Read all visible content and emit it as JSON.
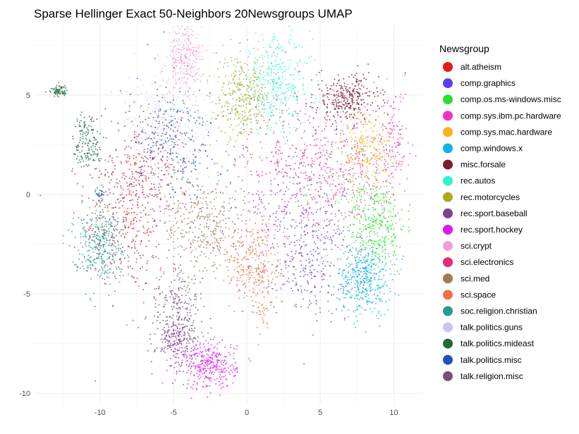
{
  "chart_data": {
    "type": "scatter",
    "title": "Sparse Hellinger Exact 50-Neighbors 20Newsgroups UMAP",
    "xlabel": "",
    "ylabel": "",
    "xlim": [
      -14.5,
      12
    ],
    "ylim": [
      -10.6,
      8.5
    ],
    "x_ticks": [
      -10,
      -5,
      0,
      5,
      10
    ],
    "y_ticks": [
      -10,
      -5,
      0,
      5
    ],
    "grid": true,
    "legend": {
      "title": "Newsgroup",
      "position": "right"
    },
    "series": [
      {
        "name": "alt.atheism",
        "color": "#e41a1c",
        "clusters": [
          {
            "cx": -8.0,
            "cy": -1.0,
            "sx": 1.5,
            "sy": 2.0,
            "n": 320
          },
          {
            "cx": -6.5,
            "cy": 1.5,
            "sx": 1.5,
            "sy": 1.2,
            "n": 120
          }
        ]
      },
      {
        "name": "comp.graphics",
        "color": "#5c3ef0",
        "clusters": [
          {
            "cx": 4.5,
            "cy": -3.5,
            "sx": 1.2,
            "sy": 1.3,
            "n": 220
          },
          {
            "cx": 3.0,
            "cy": -1.0,
            "sx": 2.0,
            "sy": 1.8,
            "n": 140
          }
        ]
      },
      {
        "name": "comp.os.ms-windows.misc",
        "color": "#2be12b",
        "clusters": [
          {
            "cx": 8.8,
            "cy": -1.6,
            "sx": 1.0,
            "sy": 1.2,
            "n": 340
          },
          {
            "cx": 7.0,
            "cy": 0.5,
            "sx": 1.8,
            "sy": 1.8,
            "n": 90
          }
        ]
      },
      {
        "name": "comp.sys.ibm.pc.hardware",
        "color": "#f030c8",
        "clusters": [
          {
            "cx": 6.5,
            "cy": 1.5,
            "sx": 2.0,
            "sy": 1.6,
            "n": 320
          },
          {
            "cx": 10.0,
            "cy": 2.5,
            "sx": 0.5,
            "sy": 1.4,
            "n": 110
          }
        ]
      },
      {
        "name": "comp.sys.mac.hardware",
        "color": "#fcb01a",
        "clusters": [
          {
            "cx": 8.2,
            "cy": 2.3,
            "sx": 0.9,
            "sy": 1.0,
            "n": 240
          }
        ]
      },
      {
        "name": "comp.windows.x",
        "color": "#10b4ea",
        "clusters": [
          {
            "cx": 8.0,
            "cy": -4.3,
            "sx": 0.9,
            "sy": 0.9,
            "n": 380
          }
        ]
      },
      {
        "name": "misc.forsale",
        "color": "#7a1b2f",
        "clusters": [
          {
            "cx": 6.8,
            "cy": 4.8,
            "sx": 1.1,
            "sy": 0.6,
            "n": 300
          }
        ]
      },
      {
        "name": "rec.autos",
        "color": "#33f2d4",
        "clusters": [
          {
            "cx": 2.0,
            "cy": 5.5,
            "sx": 1.2,
            "sy": 1.2,
            "n": 380
          }
        ]
      },
      {
        "name": "rec.motorcycles",
        "color": "#a7ad23",
        "clusters": [
          {
            "cx": -0.3,
            "cy": 4.8,
            "sx": 0.9,
            "sy": 1.0,
            "n": 320
          }
        ]
      },
      {
        "name": "rec.sport.baseball",
        "color": "#7e3f97",
        "clusters": [
          {
            "cx": -4.8,
            "cy": -7.3,
            "sx": 0.7,
            "sy": 0.7,
            "n": 240
          },
          {
            "cx": -4.5,
            "cy": -5.5,
            "sx": 0.7,
            "sy": 0.8,
            "n": 80
          }
        ]
      },
      {
        "name": "rec.sport.hockey",
        "color": "#df18ee",
        "clusters": [
          {
            "cx": -2.5,
            "cy": -8.6,
            "sx": 0.9,
            "sy": 0.6,
            "n": 320
          }
        ]
      },
      {
        "name": "sci.crypt",
        "color": "#f69cd2",
        "clusters": [
          {
            "cx": -4.2,
            "cy": 6.8,
            "sx": 0.6,
            "sy": 0.9,
            "n": 260
          }
        ]
      },
      {
        "name": "sci.electronics",
        "color": "#e8287a",
        "clusters": [
          {
            "cx": 3.0,
            "cy": 1.0,
            "sx": 2.5,
            "sy": 2.0,
            "n": 320
          }
        ]
      },
      {
        "name": "sci.med",
        "color": "#a07b52",
        "clusters": [
          {
            "cx": -3.0,
            "cy": -1.6,
            "sx": 1.3,
            "sy": 1.3,
            "n": 340
          }
        ]
      },
      {
        "name": "sci.space",
        "color": "#f0714a",
        "clusters": [
          {
            "cx": 0.6,
            "cy": -3.6,
            "sx": 1.0,
            "sy": 1.2,
            "n": 320
          },
          {
            "cx": 1.0,
            "cy": -5.8,
            "sx": 0.3,
            "sy": 0.5,
            "n": 30
          }
        ]
      },
      {
        "name": "soc.religion.christian",
        "color": "#2a9897",
        "clusters": [
          {
            "cx": -10.0,
            "cy": -2.5,
            "sx": 0.9,
            "sy": 0.9,
            "n": 380
          }
        ]
      },
      {
        "name": "talk.politics.guns",
        "color": "#c8c4f7",
        "clusters": [
          {
            "cx": -5.5,
            "cy": 3.5,
            "sx": 1.5,
            "sy": 1.4,
            "n": 320
          }
        ]
      },
      {
        "name": "talk.politics.mideast",
        "color": "#1f6b3a",
        "clusters": [
          {
            "cx": -10.8,
            "cy": 2.6,
            "sx": 0.5,
            "sy": 0.8,
            "n": 160
          },
          {
            "cx": -12.8,
            "cy": 5.2,
            "sx": 0.3,
            "sy": 0.15,
            "n": 70
          }
        ]
      },
      {
        "name": "talk.politics.misc",
        "color": "#1d52b9",
        "clusters": [
          {
            "cx": -5.0,
            "cy": 2.5,
            "sx": 1.5,
            "sy": 1.5,
            "n": 280
          },
          {
            "cx": -10.0,
            "cy": 0.0,
            "sx": 0.2,
            "sy": 0.2,
            "n": 25
          }
        ]
      },
      {
        "name": "talk.religion.misc",
        "color": "#7b4f6e",
        "clusters": [
          {
            "cx": -5.0,
            "cy": -5.5,
            "sx": 1.2,
            "sy": 1.2,
            "n": 120
          },
          {
            "cx": -8.0,
            "cy": 0.5,
            "sx": 1.0,
            "sy": 1.0,
            "n": 60
          }
        ]
      }
    ]
  }
}
